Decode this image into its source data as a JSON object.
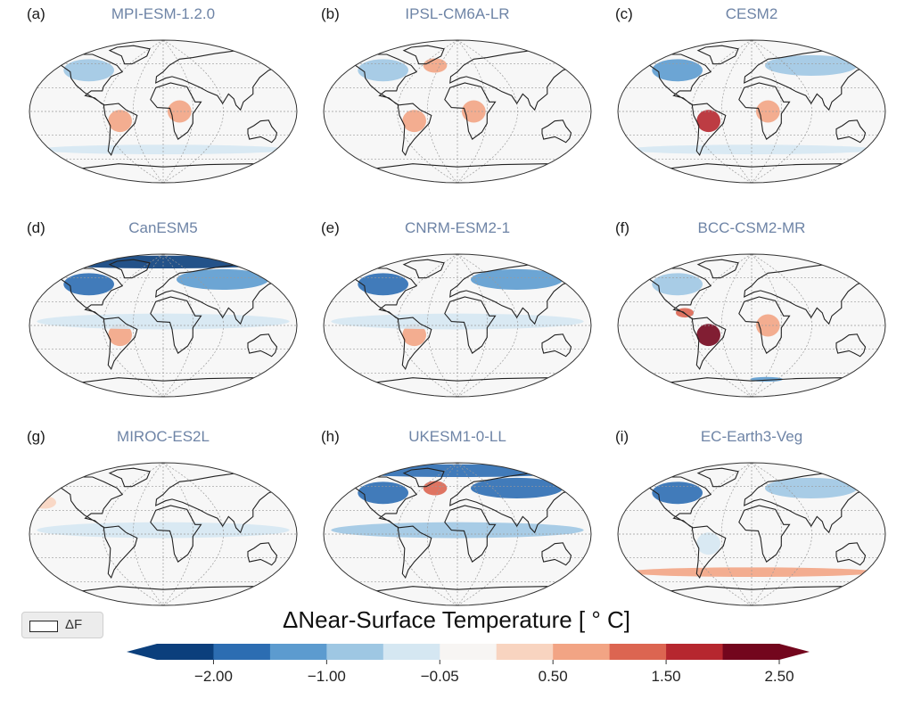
{
  "chart_data": {
    "type": "heatmap",
    "title": "",
    "panels": [
      {
        "letter": "(a)",
        "model": "MPI-ESM-1.2.0",
        "anomalies": [
          {
            "region": "North America",
            "value": -0.6
          },
          {
            "region": "South America",
            "value": 0.9
          },
          {
            "region": "Central Africa",
            "value": 0.9
          },
          {
            "region": "Southern Ocean",
            "value": -0.2
          }
        ]
      },
      {
        "letter": "(b)",
        "model": "IPSL-CM6A-LR",
        "anomalies": [
          {
            "region": "North America",
            "value": -0.6
          },
          {
            "region": "North Atlantic",
            "value": 0.5
          },
          {
            "region": "South America",
            "value": 0.5
          },
          {
            "region": "Central Africa",
            "value": 0.5
          }
        ]
      },
      {
        "letter": "(c)",
        "model": "CESM2",
        "anomalies": [
          {
            "region": "North America",
            "value": -1.3
          },
          {
            "region": "Eurasia",
            "value": -1.0
          },
          {
            "region": "South America",
            "value": 1.9
          },
          {
            "region": "Central Africa",
            "value": 0.8
          },
          {
            "region": "Southern Ocean",
            "value": -0.2
          }
        ]
      },
      {
        "letter": "(d)",
        "model": "CanESM5",
        "anomalies": [
          {
            "region": "Arctic",
            "value": -2.2
          },
          {
            "region": "North America",
            "value": -1.8
          },
          {
            "region": "Eurasia",
            "value": -1.4
          },
          {
            "region": "South America",
            "value": 0.7
          },
          {
            "region": "Tropical Oceans",
            "value": -0.5
          }
        ]
      },
      {
        "letter": "(e)",
        "model": "CNRM-ESM2-1",
        "anomalies": [
          {
            "region": "North America",
            "value": -1.6
          },
          {
            "region": "Eurasia",
            "value": -1.4
          },
          {
            "region": "South America",
            "value": 0.6
          },
          {
            "region": "Tropical Oceans",
            "value": -0.3
          }
        ]
      },
      {
        "letter": "(f)",
        "model": "BCC-CSM2-MR",
        "anomalies": [
          {
            "region": "North America",
            "value": -1.0
          },
          {
            "region": "Central America",
            "value": 1.4
          },
          {
            "region": "South America",
            "value": 2.2
          },
          {
            "region": "Central Africa",
            "value": 0.7
          },
          {
            "region": "Antarctic coast",
            "value": -1.5
          }
        ]
      },
      {
        "letter": "(g)",
        "model": "MIROC-ES2L",
        "anomalies": [
          {
            "region": "North Pacific",
            "value": 0.3
          },
          {
            "region": "Tropical Oceans",
            "value": -0.2
          }
        ]
      },
      {
        "letter": "(h)",
        "model": "UKESM1-0-LL",
        "anomalies": [
          {
            "region": "Arctic",
            "value": -1.6
          },
          {
            "region": "North America",
            "value": -1.9
          },
          {
            "region": "Eurasia",
            "value": -1.6
          },
          {
            "region": "North Atlantic",
            "value": 1.2
          },
          {
            "region": "Tropical Oceans",
            "value": -0.6
          }
        ]
      },
      {
        "letter": "(i)",
        "model": "EC-Earth3-Veg",
        "anomalies": [
          {
            "region": "North America",
            "value": -2.0
          },
          {
            "region": "Eurasia",
            "value": -0.9
          },
          {
            "region": "South America",
            "value": -0.4
          },
          {
            "region": "Southern Ocean",
            "value": 0.5
          }
        ]
      }
    ],
    "colorbar": {
      "label": "ΔNear-Surface Temperature [$^\\circ$C]",
      "label_display": "ΔNear-Surface Temperature [ ° C]",
      "boundaries": [
        -2.5,
        -2.0,
        -1.5,
        -1.0,
        -0.5,
        -0.05,
        0.05,
        0.5,
        1.0,
        1.5,
        2.0,
        2.5
      ],
      "colors": [
        "#0b3f7c",
        "#2c6db2",
        "#5c9bcf",
        "#9ec7e3",
        "#d5e7f2",
        "#f7f5f3",
        "#f8d4c0",
        "#f2a484",
        "#dc6551",
        "#b6272f",
        "#73061d"
      ],
      "extend": "both",
      "tick_values": [
        -2.0,
        -1.0,
        -0.05,
        0.5,
        1.5,
        2.5
      ],
      "tick_labels": [
        "−2.00",
        "−1.00",
        "−0.05",
        "0.50",
        "1.50",
        "2.50"
      ]
    },
    "legend": {
      "label": "ΔF",
      "placement": "bottom-left"
    }
  }
}
